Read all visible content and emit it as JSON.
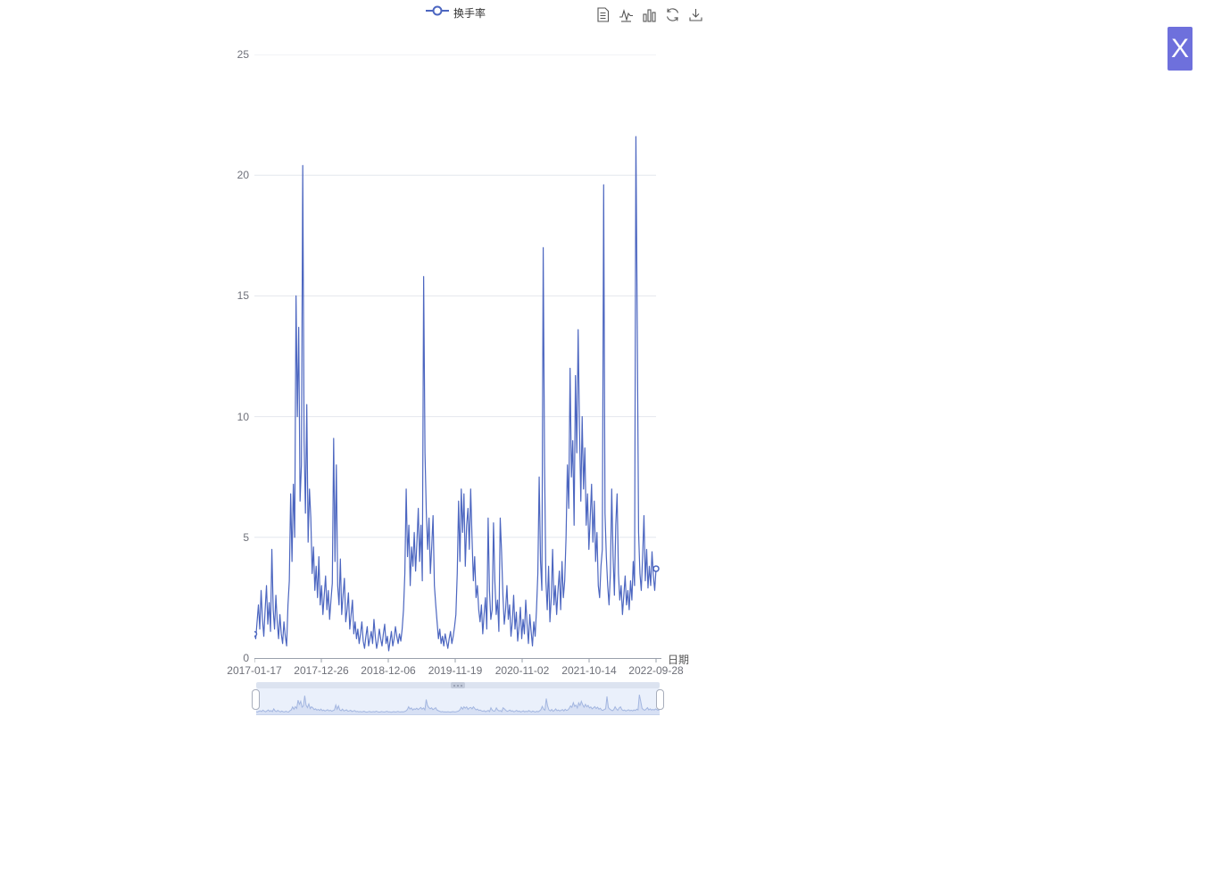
{
  "legend": {
    "label": "换手率"
  },
  "toolbox": {
    "icons": [
      "data-view-icon",
      "line-chart-icon",
      "bar-chart-icon",
      "restore-icon",
      "save-image-icon"
    ]
  },
  "close_button": {
    "label": "X",
    "background": "#6e70dc"
  },
  "chart_data": {
    "type": "line",
    "title": "",
    "legend_entries": [
      "换手率"
    ],
    "legend_position": "top-center",
    "grid": true,
    "x_axis": {
      "name": "日期",
      "tick_labels": [
        "2017-01-17",
        "2017-12-26",
        "2018-12-06",
        "2019-11-19",
        "2020-11-02",
        "2021-10-14",
        "2022-09-28"
      ]
    },
    "y_axis": {
      "ticks": [
        0,
        5,
        10,
        15,
        20,
        25
      ],
      "range": [
        0,
        25
      ]
    },
    "series": [
      {
        "name": "换手率",
        "color": "#4c66c0",
        "values": [
          1.0,
          0.8,
          1.5,
          2.2,
          1.2,
          2.8,
          1.6,
          0.9,
          2.0,
          3.0,
          1.4,
          2.3,
          1.1,
          4.5,
          2.0,
          1.2,
          2.6,
          1.5,
          0.8,
          1.8,
          1.0,
          0.6,
          1.5,
          0.9,
          0.5,
          2.2,
          3.2,
          6.8,
          4.0,
          7.2,
          5.0,
          15.0,
          10.0,
          13.7,
          6.5,
          8.0,
          20.4,
          9.0,
          6.0,
          10.5,
          4.8,
          7.0,
          5.8,
          3.5,
          4.6,
          2.8,
          3.8,
          2.5,
          4.2,
          2.2,
          3.0,
          1.8,
          2.6,
          3.4,
          2.0,
          2.8,
          1.6,
          2.4,
          3.1,
          9.1,
          4.0,
          8.0,
          3.0,
          2.2,
          4.1,
          1.8,
          2.6,
          3.3,
          1.5,
          2.0,
          2.7,
          1.2,
          1.8,
          2.4,
          1.0,
          1.5,
          0.8,
          1.2,
          0.6,
          1.0,
          1.5,
          0.7,
          0.4,
          0.9,
          1.3,
          0.5,
          0.8,
          1.1,
          0.6,
          1.6,
          0.9,
          0.4,
          0.7,
          1.2,
          0.8,
          0.5,
          1.0,
          1.4,
          0.6,
          0.9,
          0.3,
          0.7,
          1.1,
          0.5,
          0.8,
          1.3,
          0.9,
          0.6,
          1.0,
          0.7,
          1.2,
          2.0,
          3.5,
          7.0,
          4.2,
          5.5,
          3.0,
          4.6,
          3.8,
          5.2,
          3.6,
          4.8,
          6.2,
          4.0,
          5.5,
          3.2,
          15.8,
          8.5,
          6.0,
          4.5,
          5.8,
          3.5,
          4.6,
          5.9,
          3.0,
          2.2,
          1.5,
          0.8,
          1.2,
          0.6,
          0.9,
          0.5,
          1.0,
          0.7,
          0.4,
          0.8,
          1.1,
          0.6,
          0.9,
          1.3,
          1.8,
          3.5,
          6.5,
          4.0,
          7.0,
          5.2,
          6.8,
          3.8,
          5.5,
          6.2,
          4.5,
          7.0,
          5.0,
          3.2,
          4.2,
          2.5,
          3.0,
          2.0,
          1.5,
          2.2,
          1.0,
          1.8,
          2.5,
          1.2,
          5.8,
          2.8,
          1.6,
          2.0,
          5.6,
          3.2,
          1.8,
          2.4,
          1.1,
          5.8,
          4.4,
          2.6,
          1.4,
          2.0,
          3.0,
          1.6,
          2.2,
          0.9,
          1.5,
          2.6,
          1.2,
          1.9,
          0.7,
          1.3,
          2.1,
          0.8,
          1.6,
          1.0,
          2.4,
          1.4,
          0.6,
          1.8,
          1.1,
          0.5,
          1.5,
          0.9,
          2.0,
          3.5,
          7.5,
          4.0,
          2.8,
          17.0,
          8.0,
          3.2,
          2.0,
          3.8,
          1.5,
          2.5,
          4.5,
          2.2,
          3.0,
          1.8,
          2.8,
          3.6,
          2.0,
          4.0,
          2.5,
          3.2,
          5.0,
          8.0,
          6.2,
          12.0,
          7.5,
          9.0,
          5.5,
          11.7,
          8.5,
          13.6,
          9.5,
          6.5,
          10.0,
          7.0,
          8.7,
          5.5,
          6.8,
          4.5,
          5.8,
          7.2,
          4.8,
          6.5,
          4.0,
          5.2,
          3.0,
          2.5,
          3.8,
          4.5,
          19.6,
          6.0,
          4.2,
          3.0,
          2.2,
          3.5,
          7.0,
          4.2,
          2.6,
          5.5,
          6.8,
          3.5,
          2.4,
          3.0,
          1.8,
          2.6,
          3.4,
          2.2,
          2.8,
          2.0,
          3.2,
          2.4,
          4.0,
          3.0,
          21.6,
          13.8,
          5.2,
          3.5,
          2.8,
          4.2,
          5.9,
          3.2,
          4.5,
          2.9,
          3.8,
          3.0,
          4.4,
          3.4,
          2.8,
          3.7
        ]
      }
    ],
    "datazoom": {
      "selected_range_percent": [
        0,
        100
      ]
    }
  },
  "colors": {
    "line": "#4c66c0",
    "gridline": "#e4e7ed",
    "axis": "#9aa0ab",
    "axis_label": "#6e7079",
    "dz_fill": "#d7e0f4",
    "dz_stroke": "#a3b6e0"
  }
}
